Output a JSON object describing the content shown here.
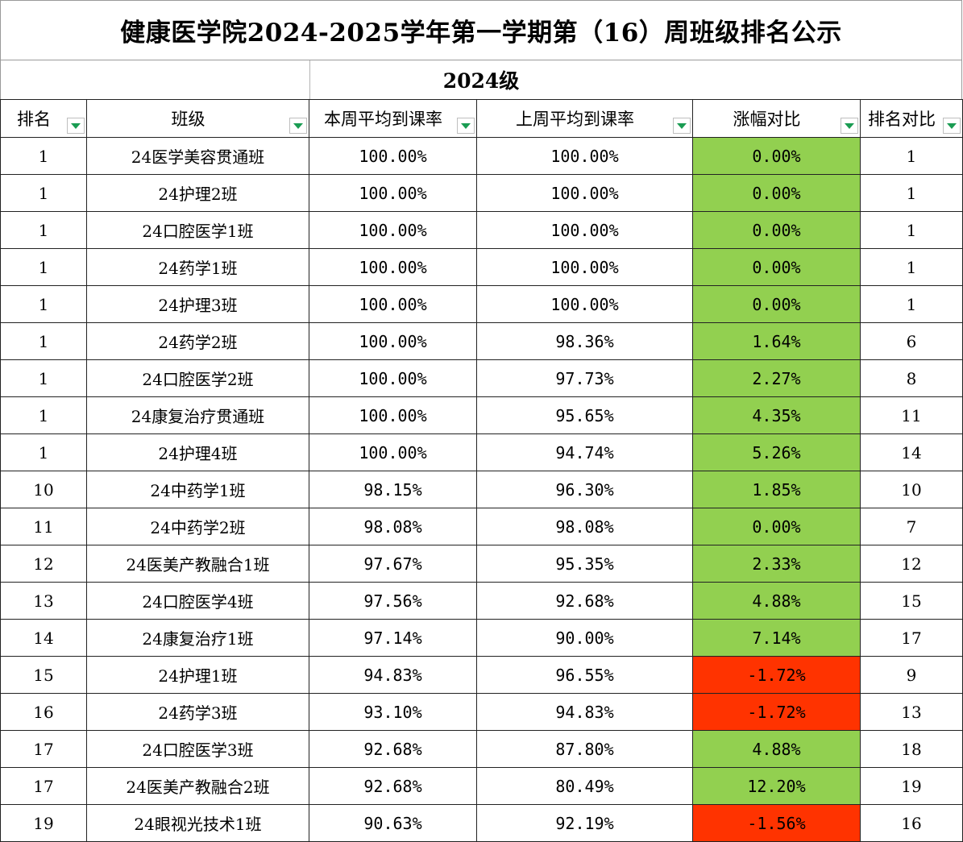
{
  "title": "健康医学院2024-2025学年第一学期第（16）周班级排名公示",
  "subtitle": "2024级",
  "headers": [
    "排名",
    "班级",
    "本周平均到课率",
    "上周平均到课率",
    "涨幅对比",
    "排名对比"
  ],
  "colors": {
    "increase": "#92d050",
    "decrease": "#ff3300",
    "filter_arrow": "#1a9c52"
  },
  "rows": [
    {
      "rank": "1",
      "class": "24医学美容贯通班",
      "this_week": "100.00%",
      "last_week": "100.00%",
      "change": "0.00%",
      "trend": "pos",
      "rank_compare": "1"
    },
    {
      "rank": "1",
      "class": "24护理2班",
      "this_week": "100.00%",
      "last_week": "100.00%",
      "change": "0.00%",
      "trend": "pos",
      "rank_compare": "1"
    },
    {
      "rank": "1",
      "class": "24口腔医学1班",
      "this_week": "100.00%",
      "last_week": "100.00%",
      "change": "0.00%",
      "trend": "pos",
      "rank_compare": "1"
    },
    {
      "rank": "1",
      "class": "24药学1班",
      "this_week": "100.00%",
      "last_week": "100.00%",
      "change": "0.00%",
      "trend": "pos",
      "rank_compare": "1"
    },
    {
      "rank": "1",
      "class": "24护理3班",
      "this_week": "100.00%",
      "last_week": "100.00%",
      "change": "0.00%",
      "trend": "pos",
      "rank_compare": "1"
    },
    {
      "rank": "1",
      "class": "24药学2班",
      "this_week": "100.00%",
      "last_week": "98.36%",
      "change": "1.64%",
      "trend": "pos",
      "rank_compare": "6"
    },
    {
      "rank": "1",
      "class": "24口腔医学2班",
      "this_week": "100.00%",
      "last_week": "97.73%",
      "change": "2.27%",
      "trend": "pos",
      "rank_compare": "8"
    },
    {
      "rank": "1",
      "class": "24康复治疗贯通班",
      "this_week": "100.00%",
      "last_week": "95.65%",
      "change": "4.35%",
      "trend": "pos",
      "rank_compare": "11"
    },
    {
      "rank": "1",
      "class": "24护理4班",
      "this_week": "100.00%",
      "last_week": "94.74%",
      "change": "5.26%",
      "trend": "pos",
      "rank_compare": "14"
    },
    {
      "rank": "10",
      "class": "24中药学1班",
      "this_week": "98.15%",
      "last_week": "96.30%",
      "change": "1.85%",
      "trend": "pos",
      "rank_compare": "10"
    },
    {
      "rank": "11",
      "class": "24中药学2班",
      "this_week": "98.08%",
      "last_week": "98.08%",
      "change": "0.00%",
      "trend": "pos",
      "rank_compare": "7"
    },
    {
      "rank": "12",
      "class": "24医美产教融合1班",
      "this_week": "97.67%",
      "last_week": "95.35%",
      "change": "2.33%",
      "trend": "pos",
      "rank_compare": "12"
    },
    {
      "rank": "13",
      "class": "24口腔医学4班",
      "this_week": "97.56%",
      "last_week": "92.68%",
      "change": "4.88%",
      "trend": "pos",
      "rank_compare": "15"
    },
    {
      "rank": "14",
      "class": "24康复治疗1班",
      "this_week": "97.14%",
      "last_week": "90.00%",
      "change": "7.14%",
      "trend": "pos",
      "rank_compare": "17"
    },
    {
      "rank": "15",
      "class": "24护理1班",
      "this_week": "94.83%",
      "last_week": "96.55%",
      "change": "-1.72%",
      "trend": "neg",
      "rank_compare": "9"
    },
    {
      "rank": "16",
      "class": "24药学3班",
      "this_week": "93.10%",
      "last_week": "94.83%",
      "change": "-1.72%",
      "trend": "neg",
      "rank_compare": "13"
    },
    {
      "rank": "17",
      "class": "24口腔医学3班",
      "this_week": "92.68%",
      "last_week": "87.80%",
      "change": "4.88%",
      "trend": "pos",
      "rank_compare": "18"
    },
    {
      "rank": "17",
      "class": "24医美产教融合2班",
      "this_week": "92.68%",
      "last_week": "80.49%",
      "change": "12.20%",
      "trend": "pos",
      "rank_compare": "19"
    },
    {
      "rank": "19",
      "class": "24眼视光技术1班",
      "this_week": "90.63%",
      "last_week": "92.19%",
      "change": "-1.56%",
      "trend": "neg",
      "rank_compare": "16"
    }
  ]
}
